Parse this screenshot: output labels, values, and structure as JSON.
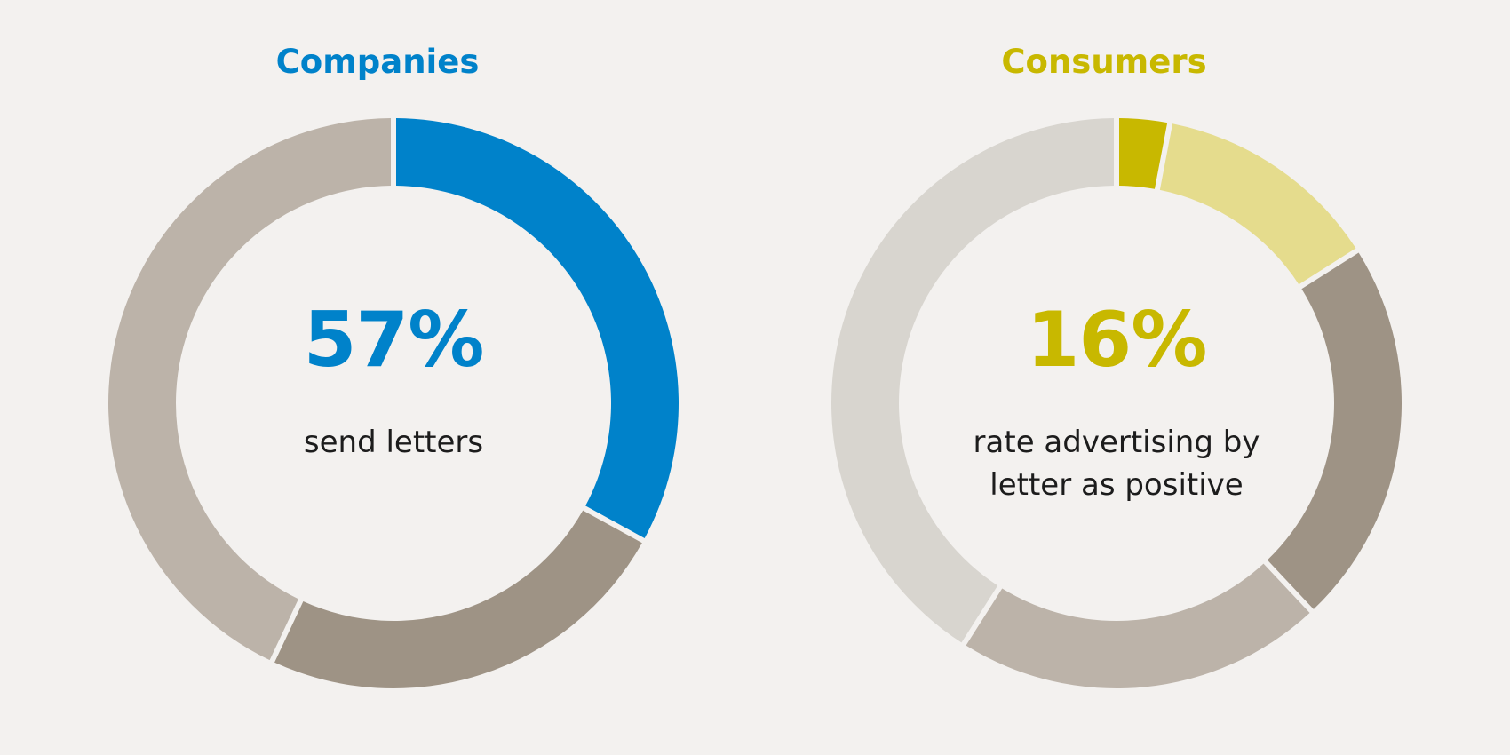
{
  "chart_data": [
    {
      "type": "pie",
      "title": "Companies",
      "center_value": "57%",
      "center_caption": [
        "send letters"
      ],
      "accent_color": "#0082ca",
      "series": [
        {
          "values": [
            33,
            24,
            43
          ],
          "colors": [
            "#0082ca",
            "#9e9385",
            "#bcb3a9"
          ]
        }
      ]
    },
    {
      "type": "pie",
      "title": "Consumers",
      "center_value": "16%",
      "center_caption": [
        "rate advertising by",
        "letter as positive"
      ],
      "accent_color": "#c8b800",
      "series": [
        {
          "values": [
            3,
            13,
            22,
            21,
            41
          ],
          "colors": [
            "#c8b800",
            "#e5dc8d",
            "#9e9385",
            "#bcb3a9",
            "#d8d5cf"
          ]
        }
      ]
    }
  ]
}
